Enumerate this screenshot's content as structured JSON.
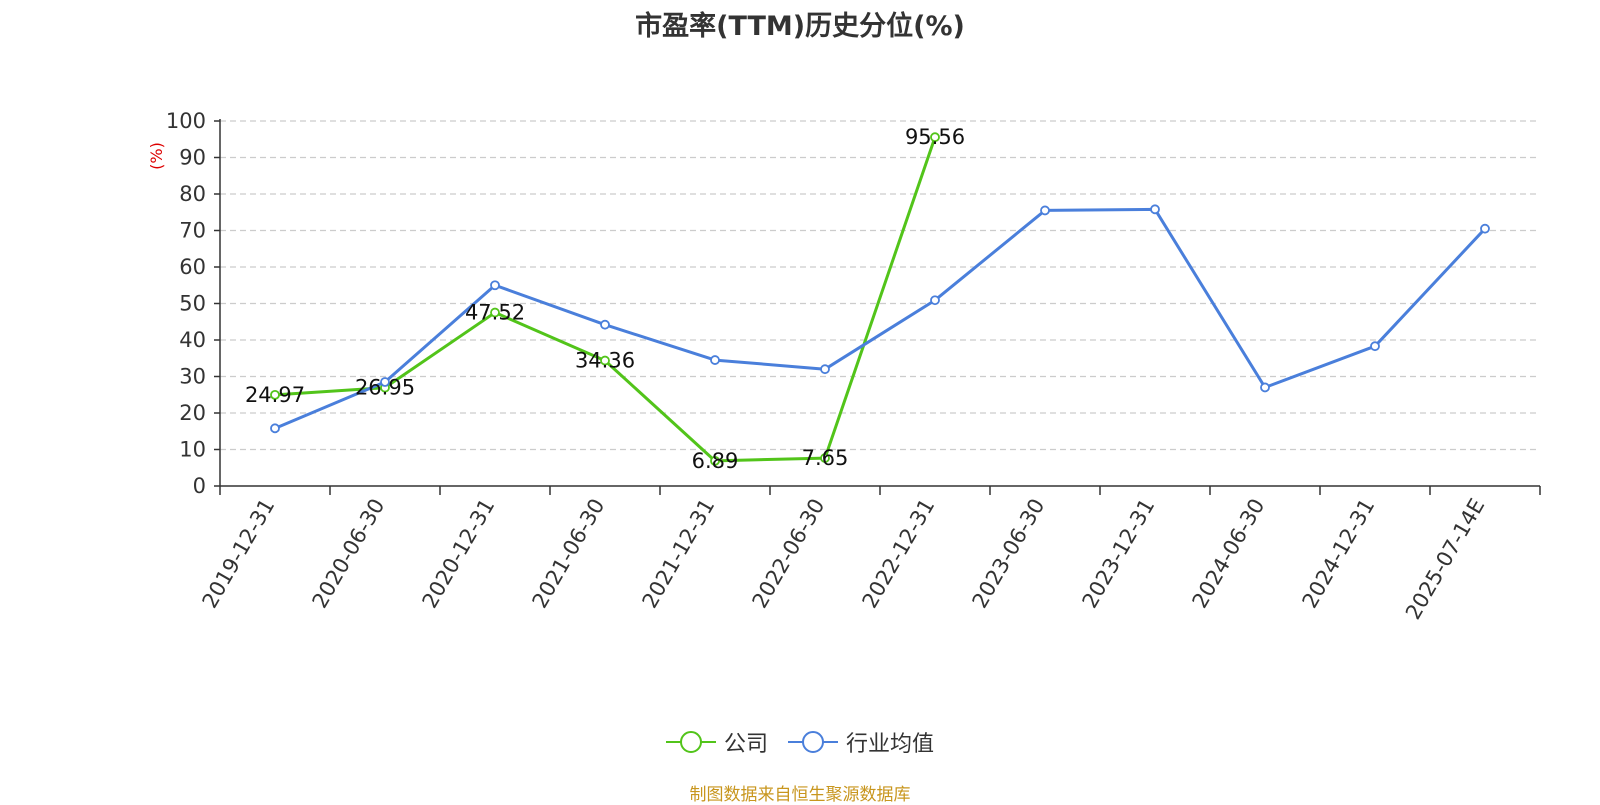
{
  "title": "市盈率(TTM)历史分位(%)",
  "source": "制图数据来自恒生聚源数据库",
  "colors": {
    "company": "#52c41a",
    "industry": "#4a7fdb",
    "ylabel": "#dd0000",
    "grid": "#cccccc",
    "axis": "#333333"
  },
  "chart_data": {
    "type": "line",
    "title": "市盈率(TTM)历史分位(%)",
    "ylabel": "(%)",
    "xlabel": "",
    "ylim": [
      0,
      100
    ],
    "y_ticks": [
      0,
      10,
      20,
      30,
      40,
      50,
      60,
      70,
      80,
      90,
      100
    ],
    "grid": "horizontal dashed",
    "legend_position": "bottom-center",
    "categories": [
      "2019-12-31",
      "2020-06-30",
      "2020-12-31",
      "2021-06-30",
      "2021-12-31",
      "2022-06-30",
      "2022-12-31",
      "2023-06-30",
      "2023-12-31",
      "2024-06-30",
      "2024-12-31",
      "2025-07-14E"
    ],
    "series": [
      {
        "name": "公司",
        "key": "company",
        "show_labels": true,
        "values": [
          24.97,
          26.95,
          47.52,
          34.36,
          6.89,
          7.65,
          95.56,
          null,
          null,
          null,
          null,
          null
        ]
      },
      {
        "name": "行业均值",
        "key": "industry",
        "show_labels": false,
        "values": [
          15.8,
          28.5,
          55.0,
          44.2,
          34.5,
          32.0,
          50.9,
          75.5,
          75.8,
          27.0,
          38.3,
          70.5
        ]
      }
    ]
  }
}
